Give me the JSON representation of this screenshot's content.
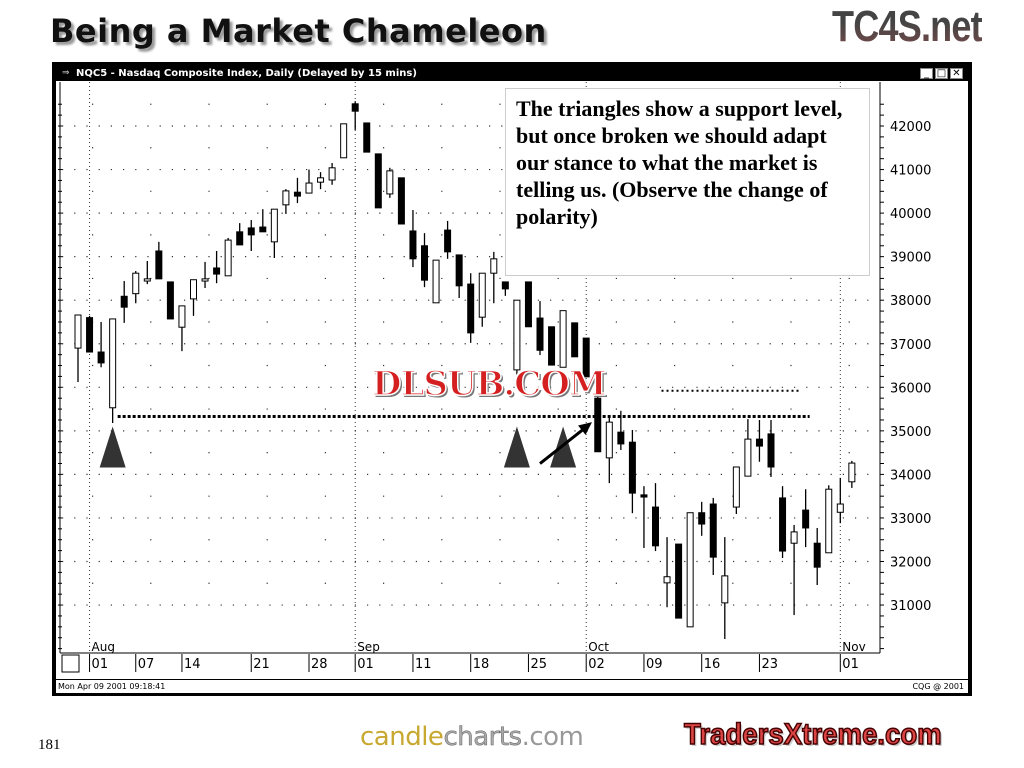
{
  "slide": {
    "title": "Being a Market Chameleon",
    "page_number": "181",
    "logo_top": "TC4S.net",
    "logo_bottom_left_a": "candle",
    "logo_bottom_left_b": "charts",
    "logo_bottom_left_c": ".com",
    "logo_bottom_right": "TradersXtreme.com",
    "watermark": "DLSUB.COM"
  },
  "window": {
    "title": "NQC5 - Nasdaq Composite Index, Daily (Delayed by 15 mins)",
    "buttons": [
      "_",
      "□",
      "✕"
    ],
    "status_left": "Mon Apr 09 2001 09:18:41",
    "status_right": "CQG @ 2001"
  },
  "annotation": {
    "text": "The triangles show a support level, but once broken we should adapt our stance to what the market is telling us. (Observe the change of polarity)"
  },
  "chart_data": {
    "type": "candlestick",
    "ylim": [
      30000,
      42700
    ],
    "y_ticks": [
      31000,
      32000,
      33000,
      34000,
      35000,
      36000,
      37000,
      38000,
      39000,
      40000,
      41000,
      42000
    ],
    "y_axis_side": "right",
    "grid": "dotted",
    "months": [
      {
        "label": "Aug",
        "bar": 1
      },
      {
        "label": "Sep",
        "bar": 24
      },
      {
        "label": "Oct",
        "bar": 44
      },
      {
        "label": "Nov",
        "bar": 66
      }
    ],
    "x_ticks": [
      {
        "label": "01",
        "bar": 1
      },
      {
        "label": "07",
        "bar": 5
      },
      {
        "label": "14",
        "bar": 9
      },
      {
        "label": "21",
        "bar": 15
      },
      {
        "label": "28",
        "bar": 20
      },
      {
        "label": "01",
        "bar": 24
      },
      {
        "label": "11",
        "bar": 29
      },
      {
        "label": "18",
        "bar": 34
      },
      {
        "label": "25",
        "bar": 39
      },
      {
        "label": "02",
        "bar": 44
      },
      {
        "label": "09",
        "bar": 49
      },
      {
        "label": "16",
        "bar": 54
      },
      {
        "label": "23",
        "bar": 59
      },
      {
        "label": "01",
        "bar": 66
      }
    ],
    "ohlc_columns": [
      "open",
      "high",
      "low",
      "close"
    ],
    "ohlc": [
      [
        36900,
        37660,
        36120,
        37660
      ],
      [
        37600,
        37640,
        36800,
        36810
      ],
      [
        36810,
        37500,
        36460,
        36560
      ],
      [
        35530,
        37570,
        35180,
        37570
      ],
      [
        38090,
        38440,
        37480,
        37840
      ],
      [
        38150,
        38670,
        37930,
        38620
      ],
      [
        38440,
        38900,
        38370,
        38490
      ],
      [
        39130,
        39340,
        38490,
        38490
      ],
      [
        38420,
        38420,
        37570,
        37570
      ],
      [
        37380,
        37870,
        36830,
        37870
      ],
      [
        38030,
        38470,
        37640,
        38470
      ],
      [
        38440,
        38880,
        38280,
        38490
      ],
      [
        38740,
        39130,
        38390,
        38600
      ],
      [
        38560,
        39430,
        38560,
        39380
      ],
      [
        39570,
        39770,
        39270,
        39270
      ],
      [
        39660,
        39840,
        39130,
        39500
      ],
      [
        39680,
        40090,
        39570,
        39570
      ],
      [
        39340,
        40090,
        38970,
        40090
      ],
      [
        40190,
        40550,
        39980,
        40510
      ],
      [
        40480,
        40810,
        40230,
        40390
      ],
      [
        40460,
        41000,
        40460,
        40690
      ],
      [
        40710,
        40940,
        40550,
        40810
      ],
      [
        40760,
        41150,
        40650,
        41040
      ],
      [
        41270,
        42050,
        41270,
        42050
      ],
      [
        42510,
        42570,
        41910,
        42340
      ],
      [
        42070,
        42070,
        41400,
        41400
      ],
      [
        41360,
        41360,
        40120,
        40120
      ],
      [
        40440,
        41040,
        40350,
        40970
      ],
      [
        40810,
        40810,
        39750,
        39750
      ],
      [
        39590,
        40070,
        38760,
        38950
      ],
      [
        39250,
        39540,
        38300,
        38460
      ],
      [
        37940,
        38920,
        37940,
        38920
      ],
      [
        39610,
        39820,
        38950,
        39110
      ],
      [
        39040,
        39040,
        38050,
        38330
      ],
      [
        38370,
        38620,
        37020,
        37250
      ],
      [
        37610,
        38620,
        37390,
        38620
      ],
      [
        38620,
        39110,
        37930,
        38950
      ],
      [
        38420,
        38420,
        38100,
        38260
      ],
      [
        36400,
        38000,
        36000,
        38000
      ],
      [
        38420,
        38420,
        37390,
        37390
      ],
      [
        37590,
        37980,
        36740,
        36850
      ],
      [
        37390,
        37390,
        36510,
        36510
      ],
      [
        36460,
        37760,
        36460,
        37760
      ],
      [
        37480,
        37480,
        36700,
        36700
      ],
      [
        37130,
        37130,
        36240,
        36240
      ],
      [
        35750,
        35820,
        34520,
        34520
      ],
      [
        34380,
        35300,
        33800,
        35200
      ],
      [
        34970,
        35460,
        34560,
        34700
      ],
      [
        34740,
        35020,
        33110,
        33570
      ],
      [
        33530,
        33730,
        32310,
        33480
      ],
      [
        33250,
        33800,
        32240,
        32360
      ],
      [
        31510,
        32560,
        30950,
        31650
      ],
      [
        32400,
        32400,
        30700,
        30700
      ],
      [
        30500,
        33120,
        30500,
        33120
      ],
      [
        33120,
        33370,
        32590,
        32860
      ],
      [
        33320,
        33460,
        31690,
        32100
      ],
      [
        31050,
        32560,
        30220,
        31670
      ],
      [
        33250,
        34170,
        33090,
        34170
      ],
      [
        33960,
        35270,
        33960,
        34810
      ],
      [
        34810,
        35250,
        34290,
        34650
      ],
      [
        34930,
        35250,
        33940,
        34170
      ],
      [
        33460,
        33730,
        32080,
        32240
      ],
      [
        32420,
        32840,
        30770,
        32680
      ],
      [
        33180,
        33660,
        32330,
        32770
      ],
      [
        32420,
        32770,
        31460,
        31870
      ],
      [
        32200,
        33750,
        32200,
        33660
      ],
      [
        33130,
        33920,
        32880,
        33320
      ],
      [
        33830,
        34310,
        33690,
        34260
      ]
    ],
    "support_line": {
      "price": 35330,
      "from_bar": 3,
      "to_bar": 63
    },
    "upper_line": {
      "price": 35920,
      "from_bar": 50,
      "to_bar": 62
    },
    "triangles_at_bars": [
      3,
      38,
      42
    ],
    "arrow": {
      "from_bar": 40,
      "from_price": 34250,
      "to_bar": 44.5,
      "to_price": 35200
    },
    "colors": {
      "up": "#ffffff",
      "down": "#000000",
      "triangle": "#333333"
    }
  }
}
